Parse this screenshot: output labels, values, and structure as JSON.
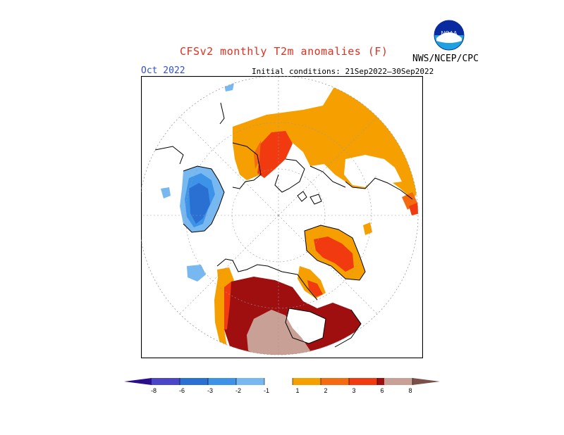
{
  "header": {
    "title": "CFSv2 monthly T2m anomalies (F)",
    "month": "Oct 2022",
    "initial_conditions": "Initial conditions: 21Sep2022–30Sep2022",
    "agency": "NWS/NCEP/CPC",
    "logo_text": "NOAA"
  },
  "legend": {
    "colors": {
      "lt_-8": "#2a0f8a",
      "-8_-6": "#4b45c8",
      "-6_-3": "#2a6fd2",
      "-3_-2": "#3d93e8",
      "-2_-1": "#78b8f0",
      "-1_1": "#ffffff",
      "1_2": "#f5a000",
      "2_3": "#f36a10",
      "3_6": "#f13a10",
      "6_8": "#a00f0f",
      "8_up": "#c8a096",
      "gt_8": "#7a5048"
    },
    "tick_labels": [
      "-8",
      "-6",
      "-3",
      "-2",
      "-1",
      "1",
      "2",
      "3",
      "6",
      "8"
    ]
  },
  "map": {
    "projection": "polar stereographic (North Pole)",
    "field": "2m temperature anomaly"
  }
}
